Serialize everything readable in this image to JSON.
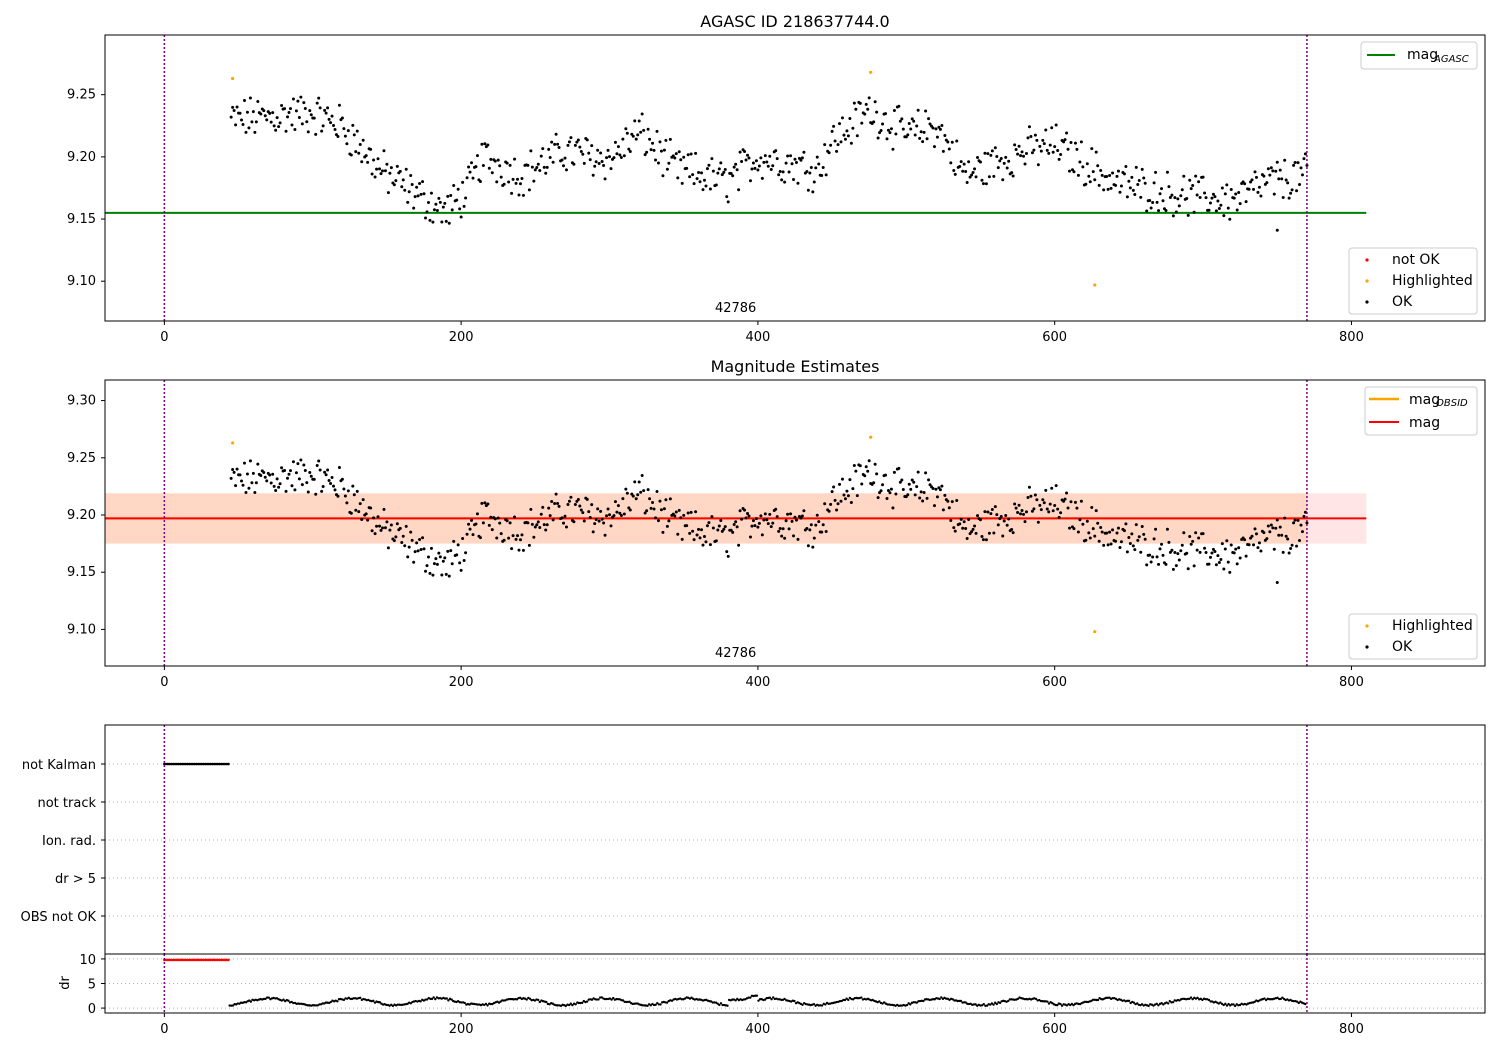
{
  "chart_data": [
    {
      "type": "scatter",
      "title": "AGASC ID 218637744.0",
      "xlabel": "",
      "ylabel": "",
      "xlim": [
        -40,
        890
      ],
      "ylim": [
        9.068,
        9.298
      ],
      "xticks": [
        0,
        200,
        400,
        600,
        800
      ],
      "yticks": [
        9.1,
        9.15,
        9.2,
        9.25
      ],
      "ytick_labels": [
        "9.10",
        "9.15",
        "9.20",
        "9.25"
      ],
      "vlines": [
        0,
        770
      ],
      "hlines": [
        {
          "name": "mag_AGASC",
          "y": 9.155,
          "x_range": [
            -40,
            810
          ],
          "color": "#008000"
        }
      ],
      "obsid_annotation": {
        "text": "42786",
        "x": 385
      },
      "series": [
        {
          "name": "not OK",
          "color": "#ff0000",
          "points": []
        },
        {
          "name": "Highlighted",
          "color": "#ffa500",
          "points": [
            [
              46,
              9.263
            ],
            [
              476,
              9.268
            ],
            [
              627,
              9.097
            ]
          ]
        },
        {
          "name": "OK",
          "color": "#000000",
          "range": [
            45,
            770
          ]
        }
      ],
      "legends": [
        {
          "placement": "top-right",
          "entries": [
            {
              "type": "line",
              "label": "mag",
              "sub": "AGASC",
              "color": "#008000"
            }
          ]
        },
        {
          "placement": "bottom-right",
          "entries": [
            {
              "type": "point",
              "label": "not OK",
              "color": "#ff0000"
            },
            {
              "type": "point",
              "label": "Highlighted",
              "color": "#ffa500"
            },
            {
              "type": "point",
              "label": "OK",
              "color": "#000000"
            }
          ]
        }
      ]
    },
    {
      "type": "scatter",
      "title": "Magnitude Estimates",
      "xlabel": "",
      "ylabel": "",
      "xlim": [
        -40,
        890
      ],
      "ylim": [
        9.068,
        9.318
      ],
      "xticks": [
        0,
        200,
        400,
        600,
        800
      ],
      "yticks": [
        9.1,
        9.15,
        9.2,
        9.25,
        9.3
      ],
      "ytick_labels": [
        "9.10",
        "9.15",
        "9.20",
        "9.25",
        "9.30"
      ],
      "vlines": [
        0,
        770
      ],
      "bands": [
        {
          "y": [
            9.175,
            9.219
          ],
          "x_range": [
            -40,
            810
          ],
          "color": "#ff9999",
          "opacity": 0.25
        },
        {
          "y": [
            9.175,
            9.219
          ],
          "x_range": [
            -40,
            770
          ],
          "color": "#ffa040",
          "opacity": 0.2
        }
      ],
      "hlines": [
        {
          "name": "mag_OBSID",
          "y": 9.197,
          "x_range": [
            -40,
            770
          ],
          "color": "#ffa500"
        },
        {
          "name": "mag",
          "y": 9.197,
          "x_range": [
            -40,
            810
          ],
          "color": "#ff0000"
        }
      ],
      "obsid_annotation": {
        "text": "42786",
        "x": 385
      },
      "series": [
        {
          "name": "Highlighted",
          "color": "#ffa500",
          "points": [
            [
              46,
              9.263
            ],
            [
              476,
              9.268
            ],
            [
              627,
              9.098
            ]
          ]
        },
        {
          "name": "OK",
          "color": "#000000",
          "range": [
            45,
            770
          ]
        }
      ],
      "legends": [
        {
          "placement": "top-right",
          "entries": [
            {
              "type": "line",
              "label": "mag",
              "sub": "OBSID",
              "color": "#ffa500"
            },
            {
              "type": "line",
              "label": "mag",
              "sub": "",
              "color": "#ff0000"
            }
          ]
        },
        {
          "placement": "bottom-right",
          "entries": [
            {
              "type": "point",
              "label": "Highlighted",
              "color": "#ffa500"
            },
            {
              "type": "point",
              "label": "OK",
              "color": "#000000"
            }
          ]
        }
      ]
    },
    {
      "type": "scatter",
      "title": "",
      "xlim": [
        -40,
        890
      ],
      "categories": [
        "not Kalman",
        "not track",
        "Ion. rad.",
        "dr > 5",
        "OBS not OK"
      ],
      "grid": true,
      "vlines": [
        0,
        770
      ],
      "series": [
        {
          "name": "not Kalman",
          "x_range": [
            0,
            44
          ],
          "color": "#000000"
        }
      ]
    },
    {
      "type": "scatter",
      "title": "",
      "ylabel": "dr",
      "xlim": [
        -40,
        890
      ],
      "ylim": [
        -1,
        11
      ],
      "xticks": [
        0,
        200,
        400,
        600,
        800
      ],
      "yticks": [
        0,
        5,
        10
      ],
      "ytick_labels": [
        "0",
        "5",
        "10"
      ],
      "grid": true,
      "vlines": [
        0,
        770
      ],
      "series": [
        {
          "name": "dr > 5",
          "color": "#ff0000",
          "x_range": [
            0,
            44
          ],
          "y": 9.8
        },
        {
          "name": "dr",
          "color": "#000000",
          "x_range": [
            44,
            770
          ],
          "y_range": [
            0.2,
            2.8
          ]
        }
      ]
    }
  ]
}
